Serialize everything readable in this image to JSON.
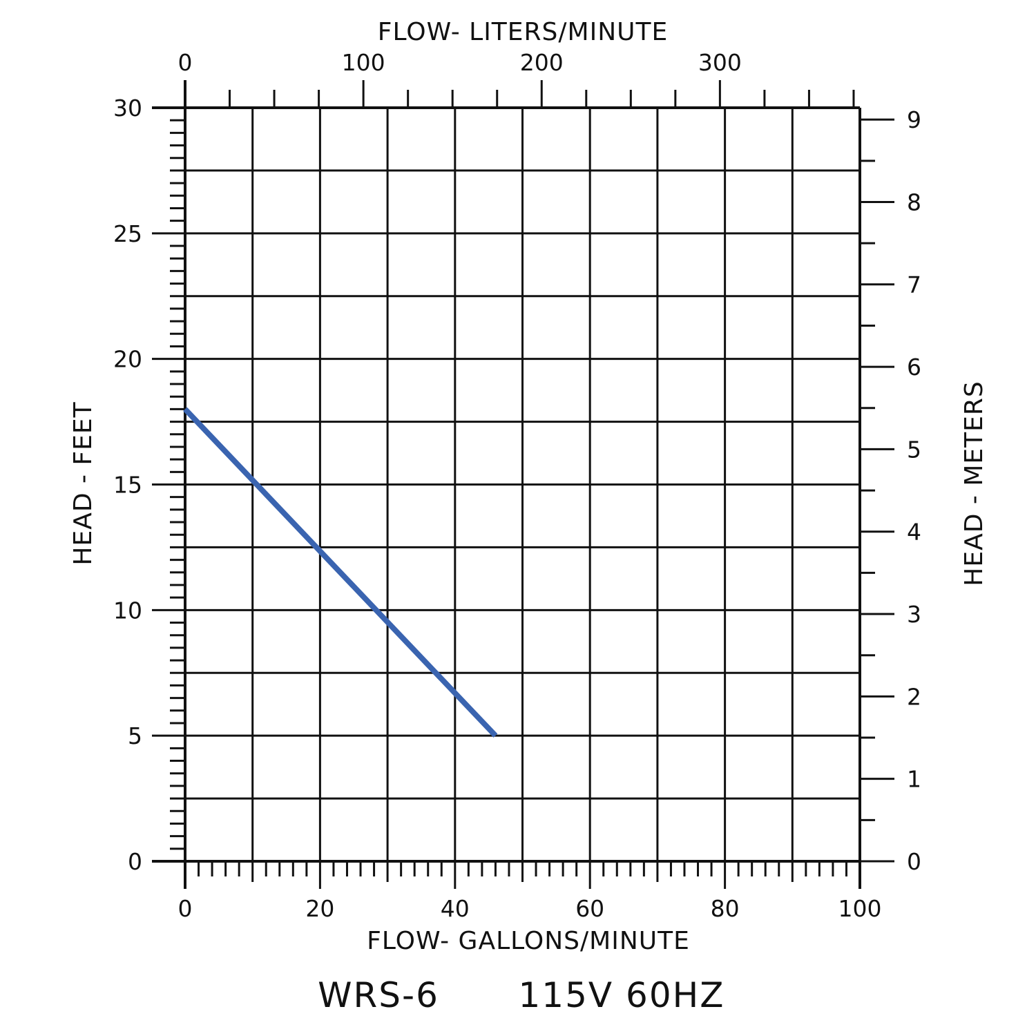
{
  "chart_data": {
    "type": "line",
    "title": "",
    "caption_model": "WRS-6",
    "caption_power": "115V 60HZ",
    "xlabel_bottom": "FLOW-  GALLONS/MINUTE",
    "xlabel_top": "FLOW-  LITERS/MINUTE",
    "ylabel_left": "HEAD - FEET",
    "ylabel_right": "HEAD - METERS",
    "xlim_gpm": [
      0,
      100
    ],
    "ylim_feet": [
      0,
      30
    ],
    "xlim_lpm": [
      0,
      378.5
    ],
    "ylim_meters": [
      0,
      9.144
    ],
    "x_ticks_gpm": [
      0,
      20,
      40,
      60,
      80,
      100
    ],
    "y_ticks_feet": [
      0,
      5,
      10,
      15,
      20,
      25,
      30
    ],
    "x_ticks_lpm": [
      0,
      100,
      200,
      300
    ],
    "y_ticks_meters": [
      0,
      1,
      2,
      3,
      4,
      5,
      6,
      7,
      8,
      9
    ],
    "grid": true,
    "series": [
      {
        "color": "#3a64b0",
        "x": [
          0,
          46
        ],
        "y": [
          18,
          5
        ]
      }
    ]
  }
}
